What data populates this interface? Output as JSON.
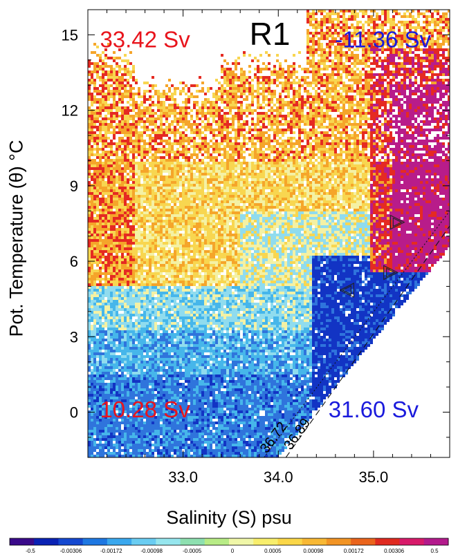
{
  "chart_data": {
    "type": "heatmap",
    "title": "R1",
    "xlabel": "Salinity (S) psu",
    "ylabel": "Pot. Temperature (θ) °C",
    "xlim": [
      32.0,
      35.8
    ],
    "ylim": [
      -1.8,
      16.0
    ],
    "x_ticks": [
      "33.0",
      "34.0",
      "35.0"
    ],
    "x_tick_values": [
      33.0,
      34.0,
      35.0
    ],
    "y_ticks": [
      "0",
      "3",
      "6",
      "9",
      "12",
      "15"
    ],
    "y_tick_values": [
      0,
      3,
      6,
      9,
      12,
      15
    ],
    "annotations": [
      {
        "text": "33.42 Sv",
        "color": "#e8141c",
        "x": 32.6,
        "y": 14.5
      },
      {
        "text": "-11.36 Sv",
        "color": "#1a1adc",
        "x": 35.1,
        "y": 14.5
      },
      {
        "text": "10.28 Sv",
        "color": "#e8141c",
        "x": 32.6,
        "y": -0.2
      },
      {
        "text": "31.60 Sv",
        "color": "#1a1adc",
        "x": 35.0,
        "y": -0.2
      }
    ],
    "density_contours": [
      {
        "label": "36.72",
        "from": [
          33.85,
          -1.8
        ],
        "to": [
          35.8,
          8.0
        ]
      },
      {
        "label": "36.89",
        "from": [
          34.08,
          -1.8
        ],
        "to": [
          35.8,
          7.4
        ]
      }
    ],
    "markers": [
      {
        "shape": "triangle-right",
        "x": 35.25,
        "y": 7.55
      },
      {
        "shape": "triangle-right",
        "x": 35.18,
        "y": 5.55
      },
      {
        "shape": "triangle-left",
        "x": 34.72,
        "y": 4.85
      }
    ],
    "colorbar": {
      "labels": [
        "-0.5",
        "-0.00306",
        "-0.00172",
        "-0.00098",
        "-0.0005",
        "0",
        "0.0005",
        "0.00098",
        "0.00172",
        "0.00306",
        "0.5"
      ],
      "colors": [
        "#3a0a8a",
        "#0a22b4",
        "#1448d0",
        "#1e78e2",
        "#3aa8ee",
        "#6acdf2",
        "#96e6ee",
        "#8ee0b0",
        "#b8ec86",
        "#f0f7a8",
        "#f8ee6c",
        "#fbd748",
        "#f8b834",
        "#f29424",
        "#ea641c",
        "#e02a20",
        "#d81a6a",
        "#b31a8c"
      ]
    },
    "color_scale": {
      "neg_strong": "#1234c4",
      "neg_mid": "#2f74dc",
      "neg_weak": "#46b6ea",
      "neutral_cool": "#90dcee",
      "neutral_warm": "#f4f1a4",
      "pos_weak": "#f8d650",
      "pos_mid": "#f5a52a",
      "pos_strong": "#e52a22",
      "pos_max": "#b81c8a"
    },
    "grid": false
  }
}
